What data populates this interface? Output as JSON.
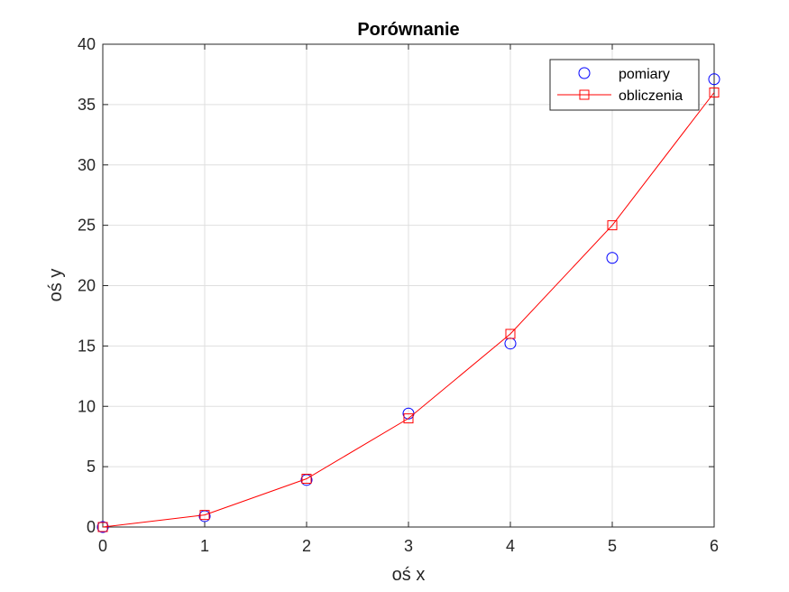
{
  "chart_data": {
    "type": "line",
    "title": "Porównanie",
    "xlabel": "oś x",
    "ylabel": "oś y",
    "xlim": [
      0,
      6
    ],
    "ylim": [
      0,
      40
    ],
    "xticks": [
      0,
      1,
      2,
      3,
      4,
      5,
      6
    ],
    "yticks": [
      0,
      5,
      10,
      15,
      20,
      25,
      30,
      35,
      40
    ],
    "grid": true,
    "legend_position": "top-right",
    "series": [
      {
        "name": "pomiary",
        "style": "markers",
        "marker": "circle",
        "color": "#0000ff",
        "x": [
          0,
          1,
          2,
          3,
          4,
          5,
          6
        ],
        "y": [
          0,
          0.9,
          3.9,
          9.4,
          15.2,
          22.3,
          37.1
        ]
      },
      {
        "name": "obliczenia",
        "style": "line-markers",
        "marker": "square",
        "color": "#ff0000",
        "x": [
          0,
          1,
          2,
          3,
          4,
          5,
          6
        ],
        "y": [
          0,
          1,
          4,
          9,
          16,
          25,
          36
        ]
      }
    ]
  }
}
